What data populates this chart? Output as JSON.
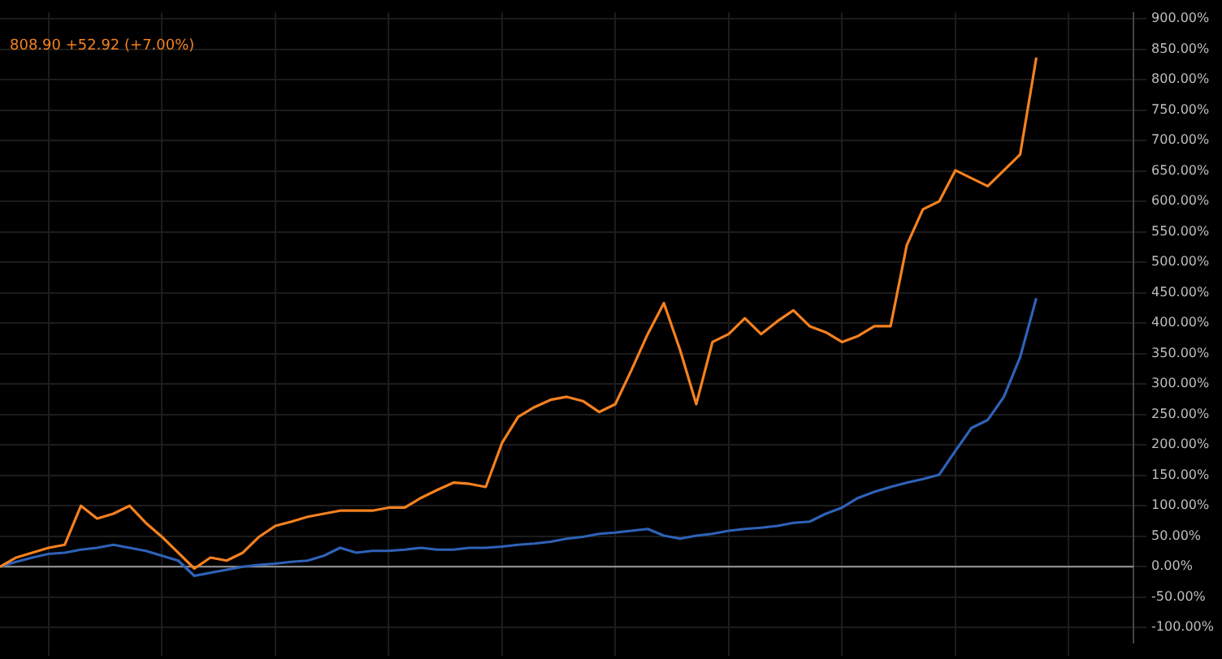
{
  "chart_data": {
    "type": "line",
    "categories": [
      null,
      null,
      null,
      null,
      null,
      null,
      null,
      null,
      null,
      null,
      null,
      null,
      null,
      null,
      null,
      null,
      null,
      null,
      null,
      null,
      null,
      null,
      null,
      null,
      null,
      null,
      null,
      null,
      null,
      null,
      null,
      null,
      null,
      null,
      null,
      null,
      null,
      null,
      null,
      null,
      null,
      null,
      null,
      null,
      null,
      null,
      null,
      null,
      null,
      null,
      null,
      null,
      null,
      null,
      null,
      null,
      null,
      null,
      null,
      null,
      null,
      null,
      null,
      null,
      null,
      null,
      null,
      null,
      null,
      null,
      null
    ],
    "series": [
      {
        "color": "#f5811f",
        "values": [
          0,
          15,
          23,
          31,
          36,
          100,
          79,
          87,
          100,
          72,
          49,
          23,
          -3,
          15,
          10,
          23,
          49,
          67,
          74,
          82,
          87,
          92,
          92,
          92,
          97,
          97,
          113,
          126,
          138,
          136,
          131,
          203,
          246,
          262,
          274,
          279,
          272,
          254,
          267,
          323,
          382,
          433,
          356,
          267,
          369,
          382,
          408,
          382,
          403,
          421,
          395,
          385,
          369,
          379,
          395,
          395,
          528,
          587,
          600,
          651,
          638,
          625,
          651,
          677,
          836,
          null,
          null,
          null,
          null,
          null,
          null
        ]
      },
      {
        "color": "#2f62b8",
        "values": [
          0,
          8,
          15,
          21,
          23,
          28,
          31,
          36,
          31,
          26,
          18,
          10,
          -15,
          -10,
          -5,
          0,
          3,
          5,
          8,
          10,
          18,
          31,
          23,
          26,
          26,
          28,
          31,
          28,
          28,
          31,
          31,
          33,
          36,
          38,
          41,
          46,
          49,
          54,
          56,
          59,
          62,
          51,
          46,
          51,
          54,
          59,
          62,
          64,
          67,
          72,
          74,
          87,
          97,
          113,
          123,
          131,
          138,
          144,
          151,
          190,
          228,
          241,
          279,
          344,
          441,
          null,
          null,
          null,
          null,
          null,
          null
        ]
      }
    ],
    "ylim": [
      -125,
      910
    ],
    "yticks": [
      {
        "value": -100,
        "label": "-100.00%"
      },
      {
        "value": -50,
        "label": "-50.00%"
      },
      {
        "value": 0,
        "label": "0.00%"
      },
      {
        "value": 50,
        "label": "50.00%"
      },
      {
        "value": 100,
        "label": "100.00%"
      },
      {
        "value": 150,
        "label": "150.00%"
      },
      {
        "value": 200,
        "label": "200.00%"
      },
      {
        "value": 250,
        "label": "250.00%"
      },
      {
        "value": 300,
        "label": "300.00%"
      },
      {
        "value": 350,
        "label": "350.00%"
      },
      {
        "value": 400,
        "label": "400.00%"
      },
      {
        "value": 450,
        "label": "450.00%"
      },
      {
        "value": 500,
        "label": "500.00%"
      },
      {
        "value": 550,
        "label": "550.00%"
      },
      {
        "value": 600,
        "label": "600.00%"
      },
      {
        "value": 650,
        "label": "650.00%"
      },
      {
        "value": 700,
        "label": "700.00%"
      },
      {
        "value": 750,
        "label": "750.00%"
      },
      {
        "value": 800,
        "label": "800.00%"
      },
      {
        "value": 850,
        "label": "850.00%"
      },
      {
        "value": 900,
        "label": "900.00%"
      }
    ],
    "ref_lines": [
      {
        "axis": "y",
        "value": 0,
        "color": "#9a9a9a"
      }
    ],
    "annotations": [
      "808.90 +52.92 (+7.00%)"
    ],
    "grid": true,
    "legend": false,
    "marker": "none",
    "line_style": "solid"
  }
}
